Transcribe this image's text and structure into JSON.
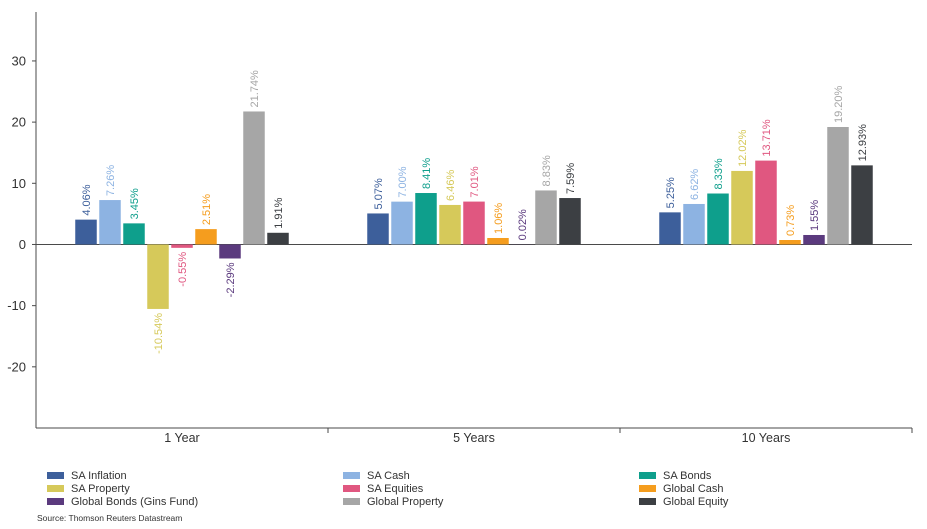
{
  "chart_data": {
    "type": "bar",
    "categories": [
      "1 Year",
      "5 Years",
      "10 Years"
    ],
    "ylim": [
      -30,
      38
    ],
    "yticks": [
      -20,
      -10,
      0,
      10,
      20,
      30
    ],
    "grid": false,
    "legend_position": "bottom",
    "series": [
      {
        "name": "SA Inflation",
        "color": "#3d5f9b",
        "values": [
          4.06,
          5.07,
          5.25
        ],
        "labels": [
          "4.06%",
          "5.07%",
          "5.25%"
        ]
      },
      {
        "name": "SA Cash",
        "color": "#8db3e2",
        "values": [
          7.26,
          7.0,
          6.62
        ],
        "labels": [
          "7.26%",
          "7.00%",
          "6.62%"
        ]
      },
      {
        "name": "SA Bonds",
        "color": "#0e9f8c",
        "values": [
          3.45,
          8.41,
          8.33
        ],
        "labels": [
          "3.45%",
          "8.41%",
          "8.33%"
        ]
      },
      {
        "name": "SA Property",
        "color": "#d6c95a",
        "values": [
          -10.54,
          6.46,
          12.02
        ],
        "labels": [
          "-10.54%",
          "6.46%",
          "12.02%"
        ]
      },
      {
        "name": "SA Equities",
        "color": "#e05780",
        "values": [
          -0.55,
          7.01,
          13.71
        ],
        "labels": [
          "-0.55%",
          "7.01%",
          "13.71%"
        ]
      },
      {
        "name": "Global Cash",
        "color": "#f59d1e",
        "values": [
          2.51,
          1.06,
          0.73
        ],
        "labels": [
          "2.51%",
          "1.06%",
          "0.73%"
        ]
      },
      {
        "name": "Global Bonds (Gins Fund)",
        "color": "#5b3a7e",
        "values": [
          -2.29,
          0.02,
          1.55
        ],
        "labels": [
          "-2.29%",
          "0.02%",
          "1.55%"
        ]
      },
      {
        "name": "Global Property",
        "color": "#a6a6a6",
        "values": [
          21.74,
          8.83,
          19.2
        ],
        "labels": [
          "21.74%",
          "8.83%",
          "19.20%"
        ]
      },
      {
        "name": "Global Equity",
        "color": "#3c3f43",
        "values": [
          1.91,
          7.59,
          12.93
        ],
        "labels": [
          "1.91%",
          "7.59%",
          "12.93%"
        ]
      }
    ],
    "legend_order": [
      "SA Inflation",
      "SA Cash",
      "SA Bonds",
      "SA Property",
      "SA Equities",
      "Global Cash",
      "Global Bonds (Gins Fund)",
      "Global Property",
      "Global Equity"
    ]
  },
  "source": "Source: Thomson Reuters Datastream"
}
